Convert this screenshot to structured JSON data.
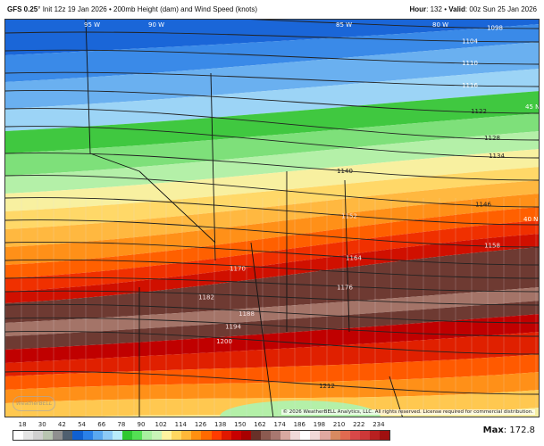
{
  "header": {
    "model": "GFS 0.25",
    "degree": "°",
    "init": "Init 12z 19 Jan 2026",
    "separator": "•",
    "product": "200mb Height (dam) and Wind Speed (knots)",
    "hour_label": "Hour",
    "hour": "132",
    "valid_label": "Valid",
    "valid": "00z Sun 25 Jan 2026"
  },
  "map": {
    "graticule_labels": [
      "95 W",
      "90 W",
      "85 W",
      "80 W",
      "45 N",
      "40 N"
    ],
    "contour_labels": [
      "1098",
      "1104",
      "1110",
      "1116",
      "1122",
      "1128",
      "1134",
      "1140",
      "1146",
      "1152",
      "1158",
      "1164",
      "1170",
      "1176",
      "1182",
      "1188",
      "1194",
      "1200",
      "1212"
    ],
    "copyright": "© 2026 WeatherBELL Analytics, LLC. All rights reserved. License required for commercial distribution.",
    "logo": "WeatherBELL"
  },
  "colorbar": {
    "labels": [
      "18",
      "30",
      "42",
      "54",
      "66",
      "78",
      "90",
      "102",
      "114",
      "126",
      "138",
      "150",
      "162",
      "174",
      "186",
      "198",
      "210",
      "222",
      "234"
    ],
    "colors": [
      "#ffffff",
      "#e4e4e4",
      "#cfcfcf",
      "#b7c4b0",
      "#8f8f8f",
      "#4f5f6f",
      "#1060d0",
      "#2a80e8",
      "#5aa8f0",
      "#8ccaf6",
      "#b8ecfa",
      "#2ec832",
      "#54e054",
      "#a8f0a0",
      "#c8f4b8",
      "#fff4a0",
      "#ffd860",
      "#ffb838",
      "#ff9010",
      "#ff6a00",
      "#ff3c00",
      "#e01800",
      "#c80000",
      "#a80000",
      "#683028",
      "#8c5a50",
      "#a87870",
      "#d8a8a0",
      "#f0d8d8",
      "#ffffff",
      "#f0d8d8",
      "#e0a8a0",
      "#d88a60",
      "#e06a50",
      "#d84848",
      "#cc3838",
      "#b82020",
      "#a01010"
    ],
    "max_label": "Max",
    "max_value": "172.8"
  }
}
